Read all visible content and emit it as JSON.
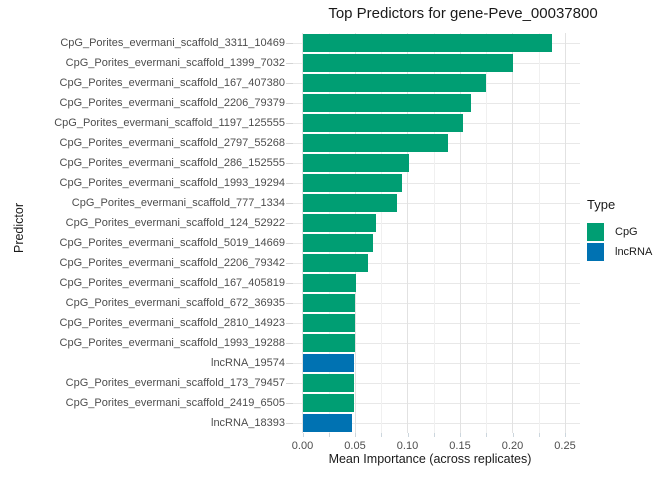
{
  "title": "Top Predictors for gene-Peve_00037800",
  "colors": {
    "CpG": "#009E73",
    "lncRNA": "#0072B2"
  },
  "chart_data": {
    "type": "bar",
    "orientation": "horizontal",
    "title": "Top Predictors for gene-Peve_00037800",
    "xlabel": "Mean Importance (across replicates)",
    "ylabel": "Predictor",
    "xlim": [
      0,
      0.2645
    ],
    "x_major_ticks": [
      0,
      0.05,
      0.1,
      0.15,
      0.2,
      0.25
    ],
    "x_tick_labels": [
      "0.00",
      "0.05",
      "0.10",
      "0.15",
      "0.20",
      "0.25"
    ],
    "grid": true,
    "legend": {
      "title": "Type",
      "position": "right",
      "entries": [
        {
          "label": "CpG",
          "color": "#009E73"
        },
        {
          "label": "lncRNA",
          "color": "#0072B2"
        }
      ]
    },
    "bars": [
      {
        "label": "CpG_Porites_evermani_scaffold_3311_10469",
        "value": 0.238,
        "type": "CpG"
      },
      {
        "label": "CpG_Porites_evermani_scaffold_1399_7032",
        "value": 0.2,
        "type": "CpG"
      },
      {
        "label": "CpG_Porites_evermani_scaffold_167_407380",
        "value": 0.175,
        "type": "CpG"
      },
      {
        "label": "CpG_Porites_evermani_scaffold_2206_79379",
        "value": 0.16,
        "type": "CpG"
      },
      {
        "label": "CpG_Porites_evermani_scaffold_1197_125555",
        "value": 0.153,
        "type": "CpG"
      },
      {
        "label": "CpG_Porites_evermani_scaffold_2797_55268",
        "value": 0.139,
        "type": "CpG"
      },
      {
        "label": "CpG_Porites_evermani_scaffold_286_152555",
        "value": 0.101,
        "type": "CpG"
      },
      {
        "label": "CpG_Porites_evermani_scaffold_1993_19294",
        "value": 0.095,
        "type": "CpG"
      },
      {
        "label": "CpG_Porites_evermani_scaffold_777_1334",
        "value": 0.09,
        "type": "CpG"
      },
      {
        "label": "CpG_Porites_evermani_scaffold_124_52922",
        "value": 0.07,
        "type": "CpG"
      },
      {
        "label": "CpG_Porites_evermani_scaffold_5019_14669",
        "value": 0.067,
        "type": "CpG"
      },
      {
        "label": "CpG_Porites_evermani_scaffold_2206_79342",
        "value": 0.062,
        "type": "CpG"
      },
      {
        "label": "CpG_Porites_evermani_scaffold_167_405819",
        "value": 0.051,
        "type": "CpG"
      },
      {
        "label": "CpG_Porites_evermani_scaffold_672_36935",
        "value": 0.05,
        "type": "CpG"
      },
      {
        "label": "CpG_Porites_evermani_scaffold_2810_14923",
        "value": 0.05,
        "type": "CpG"
      },
      {
        "label": "CpG_Porites_evermani_scaffold_1993_19288",
        "value": 0.05,
        "type": "CpG"
      },
      {
        "label": "lncRNA_19574",
        "value": 0.049,
        "type": "lncRNA"
      },
      {
        "label": "CpG_Porites_evermani_scaffold_173_79457",
        "value": 0.049,
        "type": "CpG"
      },
      {
        "label": "CpG_Porites_evermani_scaffold_2419_6505",
        "value": 0.049,
        "type": "CpG"
      },
      {
        "label": "lncRNA_18393",
        "value": 0.047,
        "type": "lncRNA"
      }
    ]
  }
}
